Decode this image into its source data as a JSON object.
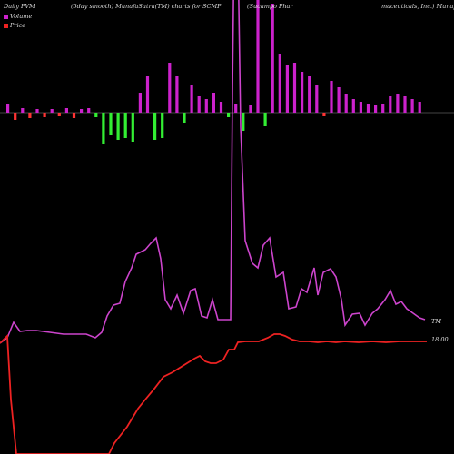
{
  "header": {
    "left": "Daily PVM",
    "mid": "(5day smooth) MunafaSutra(TM) charts for SCMP",
    "right1": "(Sucampo  Phar",
    "right2": "maceuticals, Inc.) Munaf"
  },
  "legend": {
    "volume": "Volume",
    "price": "Price"
  },
  "labels": {
    "tm": "TM",
    "price_end": "18.00"
  },
  "colors": {
    "background": "#000000",
    "up_bar": "#cc22cc",
    "down_bar_red": "#ff3333",
    "down_bar_green": "#33ee33",
    "pvm_line": "#cc44cc",
    "price_line": "#ee2222"
  },
  "chart_data": {
    "type": "bar",
    "note_series": [
      "volume_bars",
      "pvm_line",
      "price_line"
    ],
    "bars": [
      {
        "v": 0.1,
        "c": "magenta"
      },
      {
        "v": -0.08,
        "c": "red"
      },
      {
        "v": 0.05,
        "c": "magenta"
      },
      {
        "v": -0.06,
        "c": "red"
      },
      {
        "v": 0.04,
        "c": "magenta"
      },
      {
        "v": -0.05,
        "c": "red"
      },
      {
        "v": 0.04,
        "c": "magenta"
      },
      {
        "v": -0.04,
        "c": "red"
      },
      {
        "v": 0.05,
        "c": "magenta"
      },
      {
        "v": -0.06,
        "c": "red"
      },
      {
        "v": 0.04,
        "c": "magenta"
      },
      {
        "v": 0.05,
        "c": "magenta"
      },
      {
        "v": -0.05,
        "c": "green"
      },
      {
        "v": -0.35,
        "c": "green"
      },
      {
        "v": -0.25,
        "c": "green"
      },
      {
        "v": -0.3,
        "c": "green"
      },
      {
        "v": -0.28,
        "c": "green"
      },
      {
        "v": -0.32,
        "c": "green"
      },
      {
        "v": 0.22,
        "c": "magenta"
      },
      {
        "v": 0.4,
        "c": "magenta"
      },
      {
        "v": -0.3,
        "c": "green"
      },
      {
        "v": -0.28,
        "c": "green"
      },
      {
        "v": 0.55,
        "c": "magenta"
      },
      {
        "v": 0.4,
        "c": "magenta"
      },
      {
        "v": -0.12,
        "c": "green"
      },
      {
        "v": 0.3,
        "c": "magenta"
      },
      {
        "v": 0.18,
        "c": "magenta"
      },
      {
        "v": 0.15,
        "c": "magenta"
      },
      {
        "v": 0.22,
        "c": "magenta"
      },
      {
        "v": 0.12,
        "c": "magenta"
      },
      {
        "v": -0.05,
        "c": "green"
      },
      {
        "v": 0.1,
        "c": "magenta"
      },
      {
        "v": -0.2,
        "c": "green"
      },
      {
        "v": 0.08,
        "c": "magenta"
      },
      {
        "v": 1.3,
        "c": "magenta"
      },
      {
        "v": -0.15,
        "c": "green"
      },
      {
        "v": 1.2,
        "c": "magenta"
      },
      {
        "v": 0.65,
        "c": "magenta"
      },
      {
        "v": 0.52,
        "c": "magenta"
      },
      {
        "v": 0.55,
        "c": "magenta"
      },
      {
        "v": 0.45,
        "c": "magenta"
      },
      {
        "v": 0.4,
        "c": "magenta"
      },
      {
        "v": 0.3,
        "c": "magenta"
      },
      {
        "v": -0.04,
        "c": "red"
      },
      {
        "v": 0.35,
        "c": "magenta"
      },
      {
        "v": 0.28,
        "c": "magenta"
      },
      {
        "v": 0.2,
        "c": "magenta"
      },
      {
        "v": 0.15,
        "c": "magenta"
      },
      {
        "v": 0.12,
        "c": "magenta"
      },
      {
        "v": 0.1,
        "c": "magenta"
      },
      {
        "v": 0.08,
        "c": "magenta"
      },
      {
        "v": 0.1,
        "c": "magenta"
      },
      {
        "v": 0.18,
        "c": "magenta"
      },
      {
        "v": 0.2,
        "c": "magenta"
      },
      {
        "v": 0.18,
        "c": "magenta"
      },
      {
        "v": 0.15,
        "c": "magenta"
      },
      {
        "v": 0.12,
        "c": "magenta"
      }
    ],
    "pvm_line": [
      [
        0,
        378
      ],
      [
        8,
        372
      ],
      [
        15,
        355
      ],
      [
        22,
        365
      ],
      [
        30,
        364
      ],
      [
        40,
        364
      ],
      [
        55,
        366
      ],
      [
        70,
        368
      ],
      [
        85,
        368
      ],
      [
        95,
        368
      ],
      [
        105,
        372
      ],
      [
        112,
        366
      ],
      [
        118,
        348
      ],
      [
        125,
        336
      ],
      [
        132,
        334
      ],
      [
        138,
        310
      ],
      [
        145,
        295
      ],
      [
        150,
        280
      ],
      [
        160,
        275
      ],
      [
        166,
        268
      ],
      [
        172,
        262
      ],
      [
        177,
        285
      ],
      [
        182,
        330
      ],
      [
        188,
        340
      ],
      [
        195,
        325
      ],
      [
        202,
        345
      ],
      [
        210,
        320
      ],
      [
        215,
        318
      ],
      [
        222,
        348
      ],
      [
        228,
        350
      ],
      [
        234,
        330
      ],
      [
        240,
        352
      ],
      [
        248,
        352
      ],
      [
        254,
        352
      ],
      [
        256,
        100
      ],
      [
        258,
        -80
      ],
      [
        262,
        -60
      ],
      [
        265,
        140
      ],
      [
        270,
        265
      ],
      [
        278,
        290
      ],
      [
        284,
        295
      ],
      [
        290,
        270
      ],
      [
        297,
        262
      ],
      [
        304,
        305
      ],
      [
        312,
        300
      ],
      [
        318,
        340
      ],
      [
        326,
        338
      ],
      [
        332,
        318
      ],
      [
        338,
        322
      ],
      [
        346,
        295
      ],
      [
        350,
        325
      ],
      [
        356,
        300
      ],
      [
        364,
        296
      ],
      [
        370,
        305
      ],
      [
        376,
        330
      ],
      [
        380,
        358
      ],
      [
        388,
        346
      ],
      [
        396,
        345
      ],
      [
        402,
        358
      ],
      [
        410,
        345
      ],
      [
        416,
        340
      ],
      [
        424,
        330
      ],
      [
        430,
        320
      ],
      [
        436,
        335
      ],
      [
        442,
        332
      ],
      [
        448,
        340
      ],
      [
        455,
        345
      ],
      [
        462,
        350
      ],
      [
        468,
        352
      ]
    ],
    "price_line": [
      [
        0,
        378
      ],
      [
        8,
        370
      ],
      [
        12,
        440
      ],
      [
        18,
        500
      ],
      [
        120,
        500
      ],
      [
        126,
        488
      ],
      [
        140,
        470
      ],
      [
        152,
        450
      ],
      [
        160,
        440
      ],
      [
        170,
        428
      ],
      [
        180,
        415
      ],
      [
        190,
        410
      ],
      [
        198,
        405
      ],
      [
        206,
        400
      ],
      [
        214,
        395
      ],
      [
        220,
        392
      ],
      [
        226,
        398
      ],
      [
        232,
        400
      ],
      [
        238,
        400
      ],
      [
        246,
        396
      ],
      [
        252,
        385
      ],
      [
        258,
        385
      ],
      [
        262,
        377
      ],
      [
        270,
        376
      ],
      [
        285,
        376
      ],
      [
        295,
        372
      ],
      [
        302,
        368
      ],
      [
        308,
        368
      ],
      [
        314,
        370
      ],
      [
        322,
        374
      ],
      [
        330,
        376
      ],
      [
        340,
        376
      ],
      [
        350,
        377
      ],
      [
        360,
        376
      ],
      [
        370,
        377
      ],
      [
        380,
        376
      ],
      [
        395,
        377
      ],
      [
        410,
        376
      ],
      [
        425,
        377
      ],
      [
        440,
        376
      ],
      [
        455,
        376
      ],
      [
        470,
        376
      ]
    ]
  }
}
